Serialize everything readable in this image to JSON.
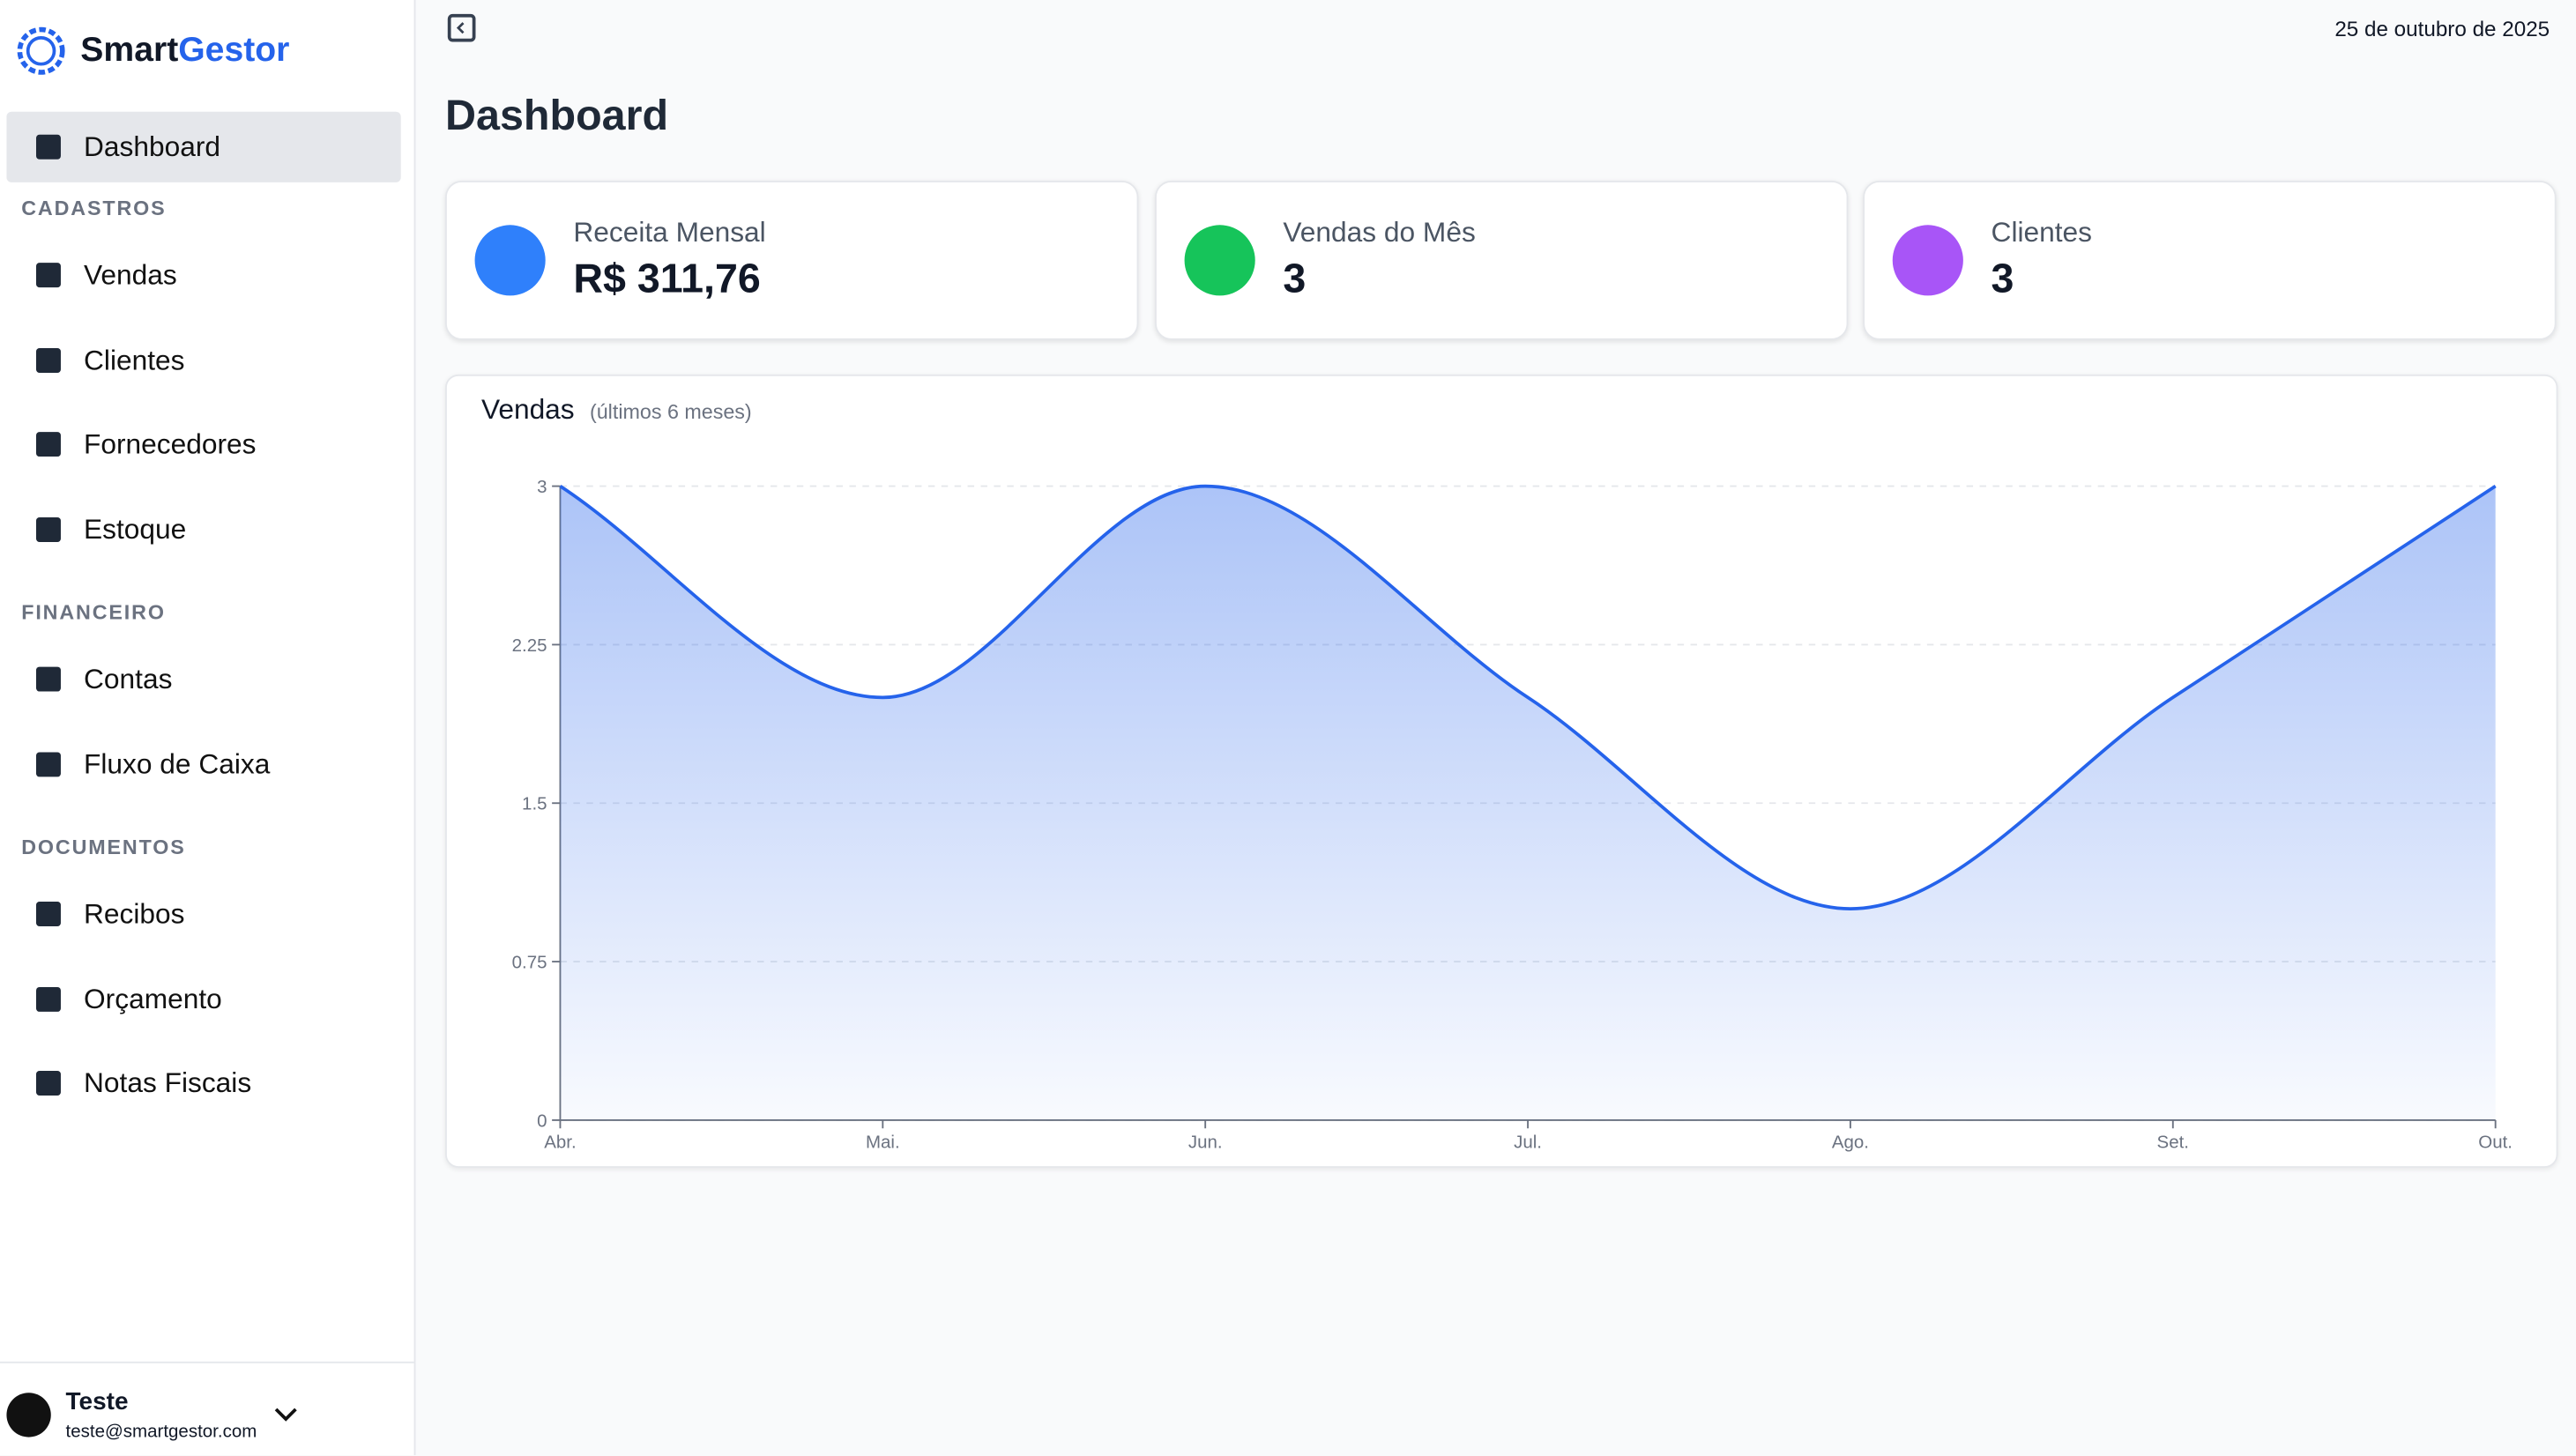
{
  "brand": {
    "part1": "Smart",
    "part2": "Gestor"
  },
  "nav": {
    "dashboard": "Dashboard",
    "sections": [
      {
        "title": "CADASTROS",
        "items": [
          "Vendas",
          "Clientes",
          "Fornecedores",
          "Estoque"
        ]
      },
      {
        "title": "FINANCEIRO",
        "items": [
          "Contas",
          "Fluxo de Caixa"
        ]
      },
      {
        "title": "DOCUMENTOS",
        "items": [
          "Recibos",
          "Orçamento",
          "Notas Fiscais"
        ]
      }
    ]
  },
  "user": {
    "name": "Teste",
    "email": "teste@smartgestor.com"
  },
  "header": {
    "date": "25 de outubro de 2025",
    "title": "Dashboard"
  },
  "cards": [
    {
      "label": "Receita Mensal",
      "value": "R$ 311,76"
    },
    {
      "label": "Vendas do Mês",
      "value": 3
    },
    {
      "label": "Clientes",
      "value": 3
    }
  ],
  "chart_data": {
    "type": "area",
    "title": "Vendas",
    "subtitle": "(últimos 6 meses)",
    "categories": [
      "Abr.",
      "Mai.",
      "Jun.",
      "Jul.",
      "Ago.",
      "Set.",
      "Out."
    ],
    "values": [
      3,
      2,
      3,
      2,
      1,
      2,
      3
    ],
    "color": "#2563eb",
    "ylim": [
      0,
      3
    ],
    "yticks": [
      0,
      0.75,
      1.5,
      2.25,
      3
    ],
    "grid": true
  }
}
